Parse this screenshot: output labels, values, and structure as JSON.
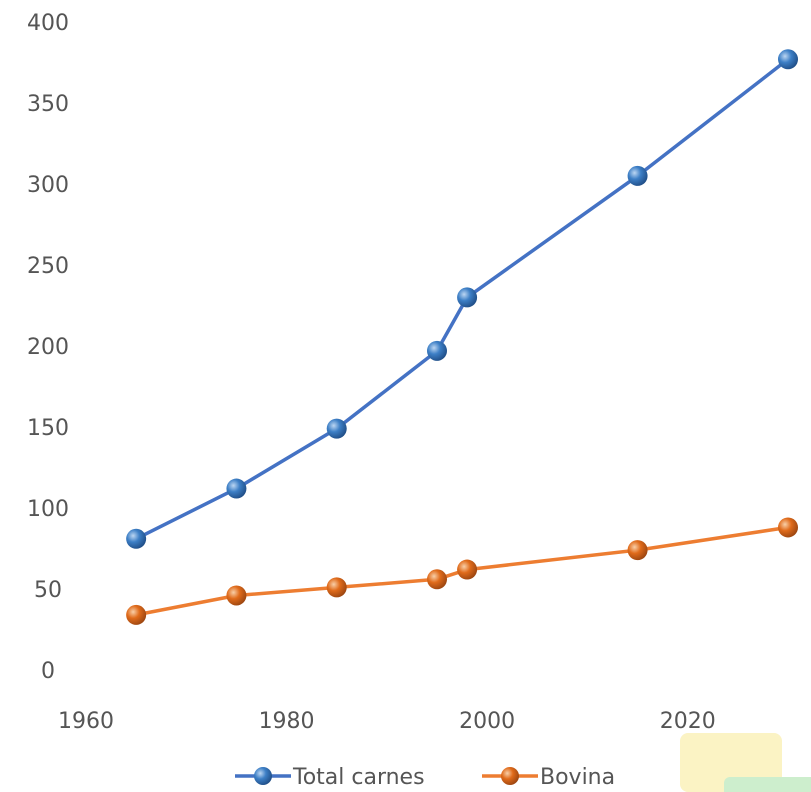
{
  "chart_data": {
    "type": "line",
    "title": "",
    "xlabel": "",
    "ylabel": "",
    "xlim": [
      1960,
      2030
    ],
    "ylim": [
      0,
      400
    ],
    "x_ticks": [
      1960,
      1980,
      2000,
      2020
    ],
    "y_ticks": [
      0,
      50,
      100,
      150,
      200,
      250,
      300,
      350,
      400
    ],
    "grid": false,
    "legend_position": "bottom",
    "series": [
      {
        "name": "Total carnes",
        "color": "#4472c4",
        "marker_color": "#3d7fc6",
        "x": [
          1965,
          1975,
          1985,
          1995,
          1998,
          2015,
          2030
        ],
        "y": [
          81,
          112,
          149,
          197,
          230,
          305,
          377
        ]
      },
      {
        "name": "Bovina",
        "color": "#ed7d31",
        "marker_color": "#e06b1b",
        "x": [
          1965,
          1975,
          1985,
          1995,
          1998,
          2015,
          2030
        ],
        "y": [
          34,
          46,
          51,
          56,
          62,
          74,
          88
        ]
      }
    ]
  }
}
